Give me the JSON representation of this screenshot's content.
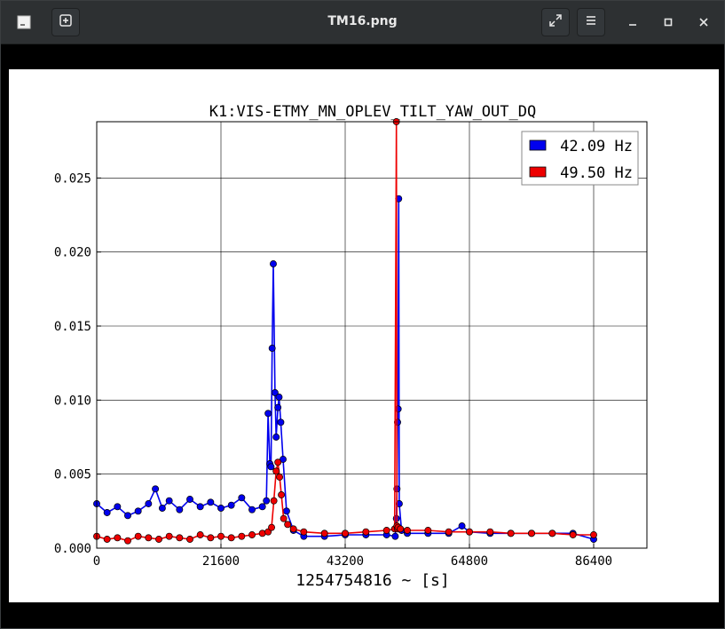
{
  "window": {
    "title": "TM16.png",
    "icons": {
      "app": "image-viewer-icon",
      "new": "plus-icon",
      "fullscreen": "expand-icon",
      "menu": "hamburger-menu-icon",
      "minimize": "minimize-icon",
      "maximize": "maximize-icon",
      "close": "close-icon"
    }
  },
  "chart_data": {
    "type": "line",
    "title": "K1:VIS-ETMY_MN_OPLEV_TILT_YAW_OUT_DQ",
    "xlabel": "1254754816 ~ [s]",
    "ylabel": "",
    "xlim": [
      0,
      86400
    ],
    "ylim": [
      0,
      0.0288
    ],
    "xticks": [
      0,
      21600,
      43200,
      64800,
      86400
    ],
    "xtick_labels": [
      "0",
      "21600",
      "43200",
      "64800",
      "86400"
    ],
    "yticks": [
      0.0,
      0.005,
      0.01,
      0.015,
      0.02,
      0.025
    ],
    "ytick_labels": [
      "0.000",
      "0.005",
      "0.010",
      "0.015",
      "0.020",
      "0.025"
    ],
    "grid": true,
    "legend_position": "top-right",
    "series": [
      {
        "name": "42.09 Hz",
        "color": "#0000ee",
        "x": [
          0,
          1800,
          3600,
          5400,
          7200,
          9000,
          10200,
          11400,
          12600,
          14400,
          16200,
          18000,
          19800,
          21600,
          23400,
          25200,
          27000,
          28800,
          29500,
          29800,
          30100,
          30300,
          30500,
          30700,
          31000,
          31200,
          31500,
          31700,
          32000,
          32400,
          33000,
          34200,
          36000,
          39600,
          43200,
          46800,
          50400,
          51900,
          52100,
          52200,
          52300,
          52400,
          52500,
          52600,
          53000,
          54000,
          57600,
          61200,
          63500,
          64800,
          68400,
          72000,
          75600,
          79200,
          82800,
          86400
        ],
        "values": [
          0.003,
          0.0024,
          0.0028,
          0.0022,
          0.0025,
          0.003,
          0.004,
          0.0027,
          0.0032,
          0.0026,
          0.0033,
          0.0028,
          0.0031,
          0.0027,
          0.0029,
          0.0034,
          0.0026,
          0.0028,
          0.0032,
          0.0091,
          0.0057,
          0.0055,
          0.0135,
          0.0192,
          0.0105,
          0.0075,
          0.0095,
          0.0102,
          0.0085,
          0.006,
          0.0025,
          0.0012,
          0.0008,
          0.0008,
          0.0009,
          0.0009,
          0.0009,
          0.0008,
          0.002,
          0.004,
          0.0085,
          0.0094,
          0.0236,
          0.003,
          0.0012,
          0.001,
          0.001,
          0.001,
          0.0015,
          0.0011,
          0.001,
          0.001,
          0.001,
          0.001,
          0.001,
          0.0006
        ]
      },
      {
        "name": "49.50 Hz",
        "color": "#ee0000",
        "x": [
          0,
          1800,
          3600,
          5400,
          7200,
          9000,
          10800,
          12600,
          14400,
          16200,
          18000,
          19800,
          21600,
          23400,
          25200,
          27000,
          28800,
          29800,
          30400,
          30800,
          31200,
          31500,
          31800,
          32100,
          32500,
          33200,
          34200,
          36000,
          39600,
          43200,
          46800,
          50400,
          51800,
          52100,
          52200,
          52300,
          52400,
          52800,
          54000,
          57600,
          61200,
          64800,
          68400,
          72000,
          75600,
          79200,
          82800,
          86400
        ],
        "values": [
          0.0008,
          0.0006,
          0.0007,
          0.0005,
          0.0008,
          0.0007,
          0.0006,
          0.0008,
          0.0007,
          0.0006,
          0.0009,
          0.0007,
          0.0008,
          0.0007,
          0.0008,
          0.0009,
          0.001,
          0.0011,
          0.0014,
          0.0032,
          0.0052,
          0.0058,
          0.0048,
          0.0036,
          0.002,
          0.0016,
          0.0013,
          0.0011,
          0.001,
          0.001,
          0.0011,
          0.0012,
          0.0013,
          0.0288,
          0.0015,
          0.0013,
          0.0014,
          0.0013,
          0.0012,
          0.0012,
          0.0011,
          0.0011,
          0.0011,
          0.001,
          0.001,
          0.001,
          0.0009,
          0.0009
        ]
      }
    ]
  }
}
